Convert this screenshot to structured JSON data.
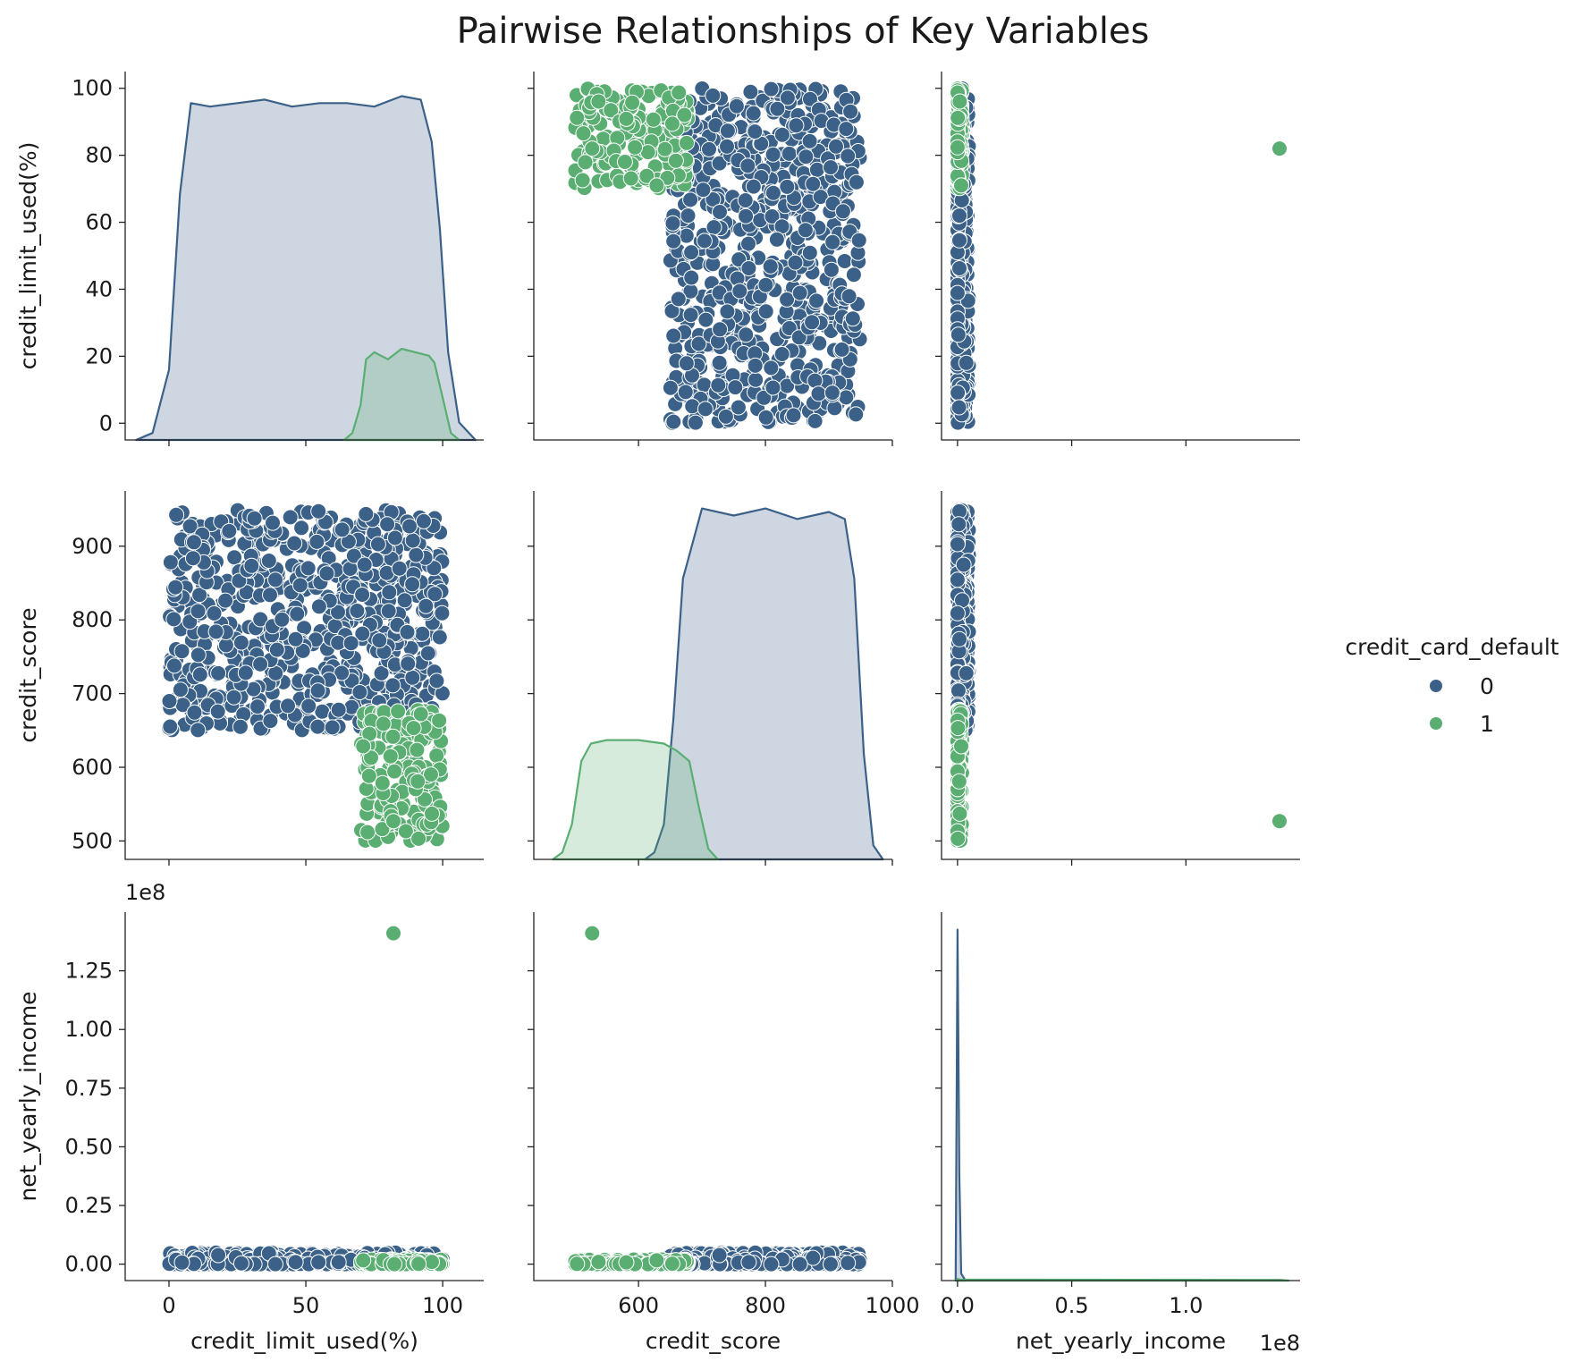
{
  "chart_data": {
    "type": "scatter",
    "title": "Pairwise Relationships of Key Variables",
    "variables": [
      "credit_limit_used(%)",
      "credit_score",
      "net_yearly_income"
    ],
    "legend": {
      "title": "credit_card_default",
      "placement": "center-right",
      "entries": [
        {
          "label": "0",
          "color": "#3b6188"
        },
        {
          "label": "1",
          "color": "#5aae72"
        }
      ]
    },
    "hue_colors": {
      "0": "#3b6188",
      "1": "#5aae72"
    },
    "axes": {
      "credit_limit_used(%)": {
        "x_range": [
          -16,
          115
        ],
        "y_range": [
          -5,
          105
        ],
        "x_ticks": [
          0,
          50,
          100
        ],
        "x_tick_labels": [
          "0",
          "50",
          "100"
        ],
        "y_ticks": [
          0,
          20,
          40,
          60,
          80,
          100
        ],
        "y_tick_labels": [
          "0",
          "20",
          "40",
          "60",
          "80",
          "100"
        ]
      },
      "credit_score": {
        "x_range": [
          435,
          1000
        ],
        "y_range": [
          475,
          975
        ],
        "x_ticks": [
          600,
          800,
          1000
        ],
        "x_tick_labels": [
          "600",
          "800",
          "1000"
        ],
        "y_ticks": [
          500,
          600,
          700,
          800,
          900
        ],
        "y_tick_labels": [
          "500",
          "600",
          "700",
          "800",
          "900"
        ]
      },
      "net_yearly_income": {
        "x_range": [
          -7000000,
          150000000
        ],
        "y_range": [
          -7000000,
          150000000
        ],
        "x_ticks": [
          0,
          50000000,
          100000000
        ],
        "x_tick_labels": [
          "0.0",
          "0.5",
          "1.0"
        ],
        "y_ticks": [
          0,
          25000000,
          50000000,
          75000000,
          100000000,
          125000000
        ],
        "y_tick_labels": [
          "0.00",
          "0.25",
          "0.50",
          "0.75",
          "1.00",
          "1.25"
        ],
        "offset_label": "1e8"
      }
    },
    "clusters": {
      "0": {
        "credit_limit_used(%)": [
          0,
          100
        ],
        "credit_score": [
          650,
          950
        ],
        "net_yearly_income": [
          0,
          5000000
        ]
      },
      "1": {
        "credit_limit_used(%)": [
          70,
          100
        ],
        "credit_score": [
          500,
          680
        ],
        "net_yearly_income": [
          0,
          2000000
        ]
      }
    },
    "outliers": [
      {
        "hue": "1",
        "credit_limit_used(%)": 82,
        "credit_score": 527,
        "net_yearly_income": 141000000
      }
    ],
    "kde": {
      "credit_limit_used(%)": {
        "0": {
          "x": [
            -12,
            -6,
            0,
            4,
            8,
            15,
            25,
            35,
            45,
            55,
            65,
            75,
            85,
            92,
            96,
            99,
            102,
            106,
            112
          ],
          "y": [
            0,
            2,
            20,
            70,
            96,
            95,
            96,
            97,
            95,
            96,
            96,
            95,
            98,
            97,
            85,
            60,
            25,
            5,
            0
          ]
        },
        "1": {
          "x": [
            64,
            67,
            70,
            72,
            75,
            80,
            85,
            90,
            95,
            97,
            100,
            103,
            106
          ],
          "y": [
            0,
            2,
            10,
            23,
            25,
            23,
            26,
            25,
            24,
            22,
            12,
            2,
            0
          ]
        }
      },
      "credit_score": {
        "0": {
          "x": [
            610,
            625,
            640,
            655,
            670,
            700,
            750,
            800,
            850,
            900,
            925,
            940,
            955,
            970,
            985
          ],
          "y": [
            0,
            2,
            10,
            40,
            80,
            100,
            98,
            100,
            97,
            99,
            97,
            80,
            30,
            4,
            0
          ]
        },
        "1": {
          "x": [
            465,
            480,
            495,
            510,
            525,
            550,
            600,
            640,
            660,
            680,
            695,
            710,
            725
          ],
          "y": [
            0,
            2,
            10,
            28,
            33,
            34,
            34,
            33,
            31,
            28,
            15,
            3,
            0
          ]
        }
      },
      "net_yearly_income": {
        "0": {
          "x": [
            -800000,
            0,
            800000,
            1600000,
            3500000
          ],
          "y": [
            0,
            100,
            30,
            2,
            0
          ]
        },
        "1": {
          "x": [
            -500000,
            0,
            1000000,
            10000000,
            141000000,
            145000000
          ],
          "y": [
            0,
            0.5,
            0.3,
            0.25,
            0.2,
            0
          ]
        }
      }
    }
  }
}
